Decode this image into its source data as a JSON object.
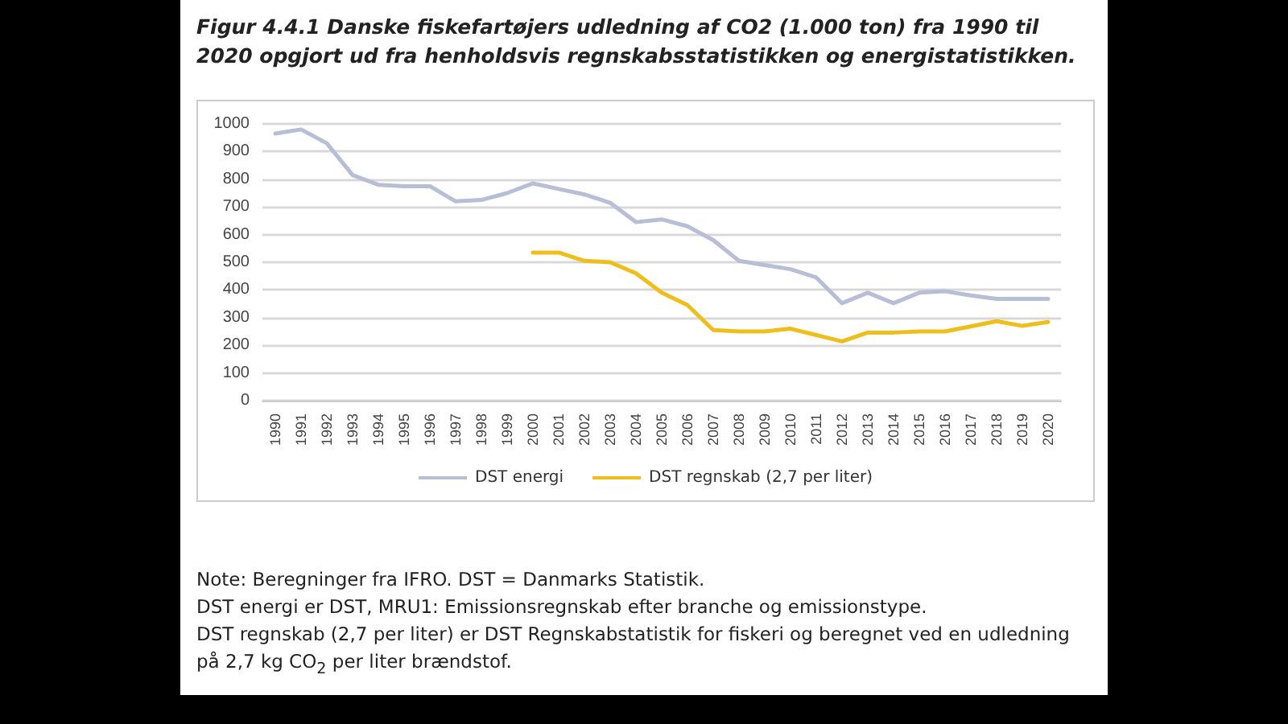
{
  "chart_data": {
    "type": "line",
    "title": "Figur 4.4.1 Danske fiskefartøjers udledning af CO2 (1.000 ton) fra 1990 til 2020 opgjort ud fra henholdsvis regnskabsstatistikken og energistatistikken.",
    "categories": [
      "1990",
      "1991",
      "1992",
      "1993",
      "1994",
      "1995",
      "1996",
      "1997",
      "1998",
      "1999",
      "2000",
      "2001",
      "2002",
      "2003",
      "2004",
      "2005",
      "2006",
      "2007",
      "2008",
      "2009",
      "2010",
      "2011",
      "2012",
      "2013",
      "2014",
      "2015",
      "2016",
      "2017",
      "2018",
      "2019",
      "2020"
    ],
    "series": [
      {
        "name": "DST energi",
        "color": "#b7bed6",
        "values": [
          965,
          980,
          930,
          815,
          780,
          775,
          775,
          720,
          725,
          750,
          785,
          765,
          745,
          715,
          645,
          655,
          630,
          580,
          505,
          490,
          475,
          445,
          352,
          390,
          352,
          390,
          395,
          380,
          368,
          368,
          368
        ]
      },
      {
        "name": "DST regnskab (2,7 per liter)",
        "color": "#eebf1c",
        "values": [
          null,
          null,
          null,
          null,
          null,
          null,
          null,
          null,
          null,
          null,
          535,
          535,
          505,
          500,
          460,
          390,
          345,
          255,
          250,
          250,
          260,
          237,
          214,
          246,
          246,
          250,
          250,
          268,
          287,
          270,
          284
        ]
      }
    ],
    "ylim": [
      0,
      1000
    ],
    "yticks": [
      0,
      100,
      200,
      300,
      400,
      500,
      600,
      700,
      800,
      900,
      1000
    ],
    "grid": "y",
    "legend": "bottom",
    "marker": "none",
    "line_style": "solid",
    "annotations": [
      "Note: Beregninger fra IFRO. DST = Danmarks Statistik.",
      "DST energi er DST, MRU1: Emissionsregnskab efter branche og emissionstype.",
      "DST regnskab (2,7 per liter) er DST Regnskabstatistik for fiskeri og beregnet ved en udledning på 2,7 kg CO$_{2}$ per liter brændstof."
    ]
  }
}
